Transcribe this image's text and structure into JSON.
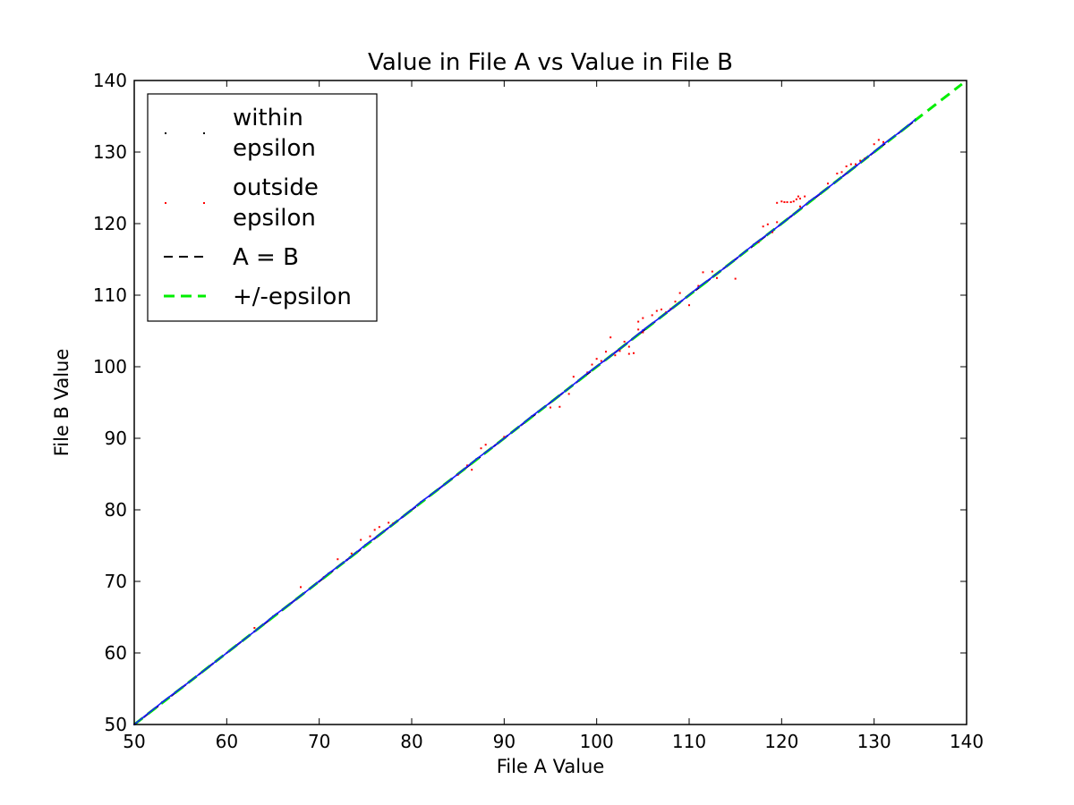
{
  "chart_data": {
    "type": "scatter",
    "title": "Value in File A vs Value in File B",
    "xlabel": "File A Value",
    "ylabel": "File B Value",
    "xlim": [
      50,
      140
    ],
    "ylim": [
      50,
      140
    ],
    "xticks": [
      "50",
      "60",
      "70",
      "80",
      "90",
      "100",
      "110",
      "120",
      "130",
      "140"
    ],
    "yticks": [
      "50",
      "60",
      "70",
      "80",
      "90",
      "100",
      "110",
      "120",
      "130",
      "140"
    ],
    "grid": false,
    "legend_position": "top-left",
    "series": [
      {
        "name": "within epsilon",
        "kind": "points",
        "color": "#1a1aff",
        "points": [
          [
            50,
            50
          ],
          [
            53,
            53.1
          ],
          [
            56,
            56
          ],
          [
            58,
            58
          ],
          [
            60.5,
            60.5
          ],
          [
            63,
            63
          ],
          [
            65,
            65.1
          ],
          [
            67,
            67
          ],
          [
            69,
            69
          ],
          [
            71,
            71.1
          ],
          [
            73,
            73
          ],
          [
            75,
            75.1
          ],
          [
            77,
            77
          ],
          [
            79,
            79
          ],
          [
            81,
            81.1
          ],
          [
            83,
            83
          ],
          [
            85,
            85
          ],
          [
            87,
            87.1
          ],
          [
            89,
            89
          ],
          [
            91,
            91
          ],
          [
            93,
            93.1
          ],
          [
            95,
            95
          ],
          [
            97,
            97
          ],
          [
            99,
            99.1
          ],
          [
            101,
            101
          ],
          [
            103,
            103
          ],
          [
            105,
            105.1
          ],
          [
            107,
            107
          ],
          [
            109,
            109
          ],
          [
            111,
            111.1
          ],
          [
            113,
            113
          ],
          [
            115,
            115
          ],
          [
            117,
            117.1
          ],
          [
            119,
            119
          ],
          [
            121,
            121
          ],
          [
            123,
            123.1
          ],
          [
            125,
            125
          ],
          [
            127,
            127
          ],
          [
            129,
            129
          ],
          [
            131,
            131.1
          ],
          [
            133,
            133
          ],
          [
            134.5,
            134.6
          ]
        ]
      },
      {
        "name": "outside epsilon",
        "kind": "points",
        "color": "#ff0000",
        "points": [
          [
            63,
            63.5
          ],
          [
            68,
            69.2
          ],
          [
            70.5,
            70.6
          ],
          [
            72,
            73.1
          ],
          [
            73.5,
            73.9
          ],
          [
            74.5,
            75.8
          ],
          [
            75.5,
            76.3
          ],
          [
            76,
            77.2
          ],
          [
            76.5,
            77.6
          ],
          [
            77.5,
            78.2
          ],
          [
            78,
            78.1
          ],
          [
            85,
            84.9
          ],
          [
            86,
            86.2
          ],
          [
            86.5,
            85.6
          ],
          [
            87.5,
            88.6
          ],
          [
            88,
            89.1
          ],
          [
            90,
            90.2
          ],
          [
            95,
            94.3
          ],
          [
            96,
            94.4
          ],
          [
            97,
            96.2
          ],
          [
            97.5,
            98.6
          ],
          [
            99,
            99.2
          ],
          [
            99.5,
            100.3
          ],
          [
            100,
            101.1
          ],
          [
            100.5,
            100.8
          ],
          [
            101,
            102.1
          ],
          [
            101.5,
            104.1
          ],
          [
            102,
            101.6
          ],
          [
            102.5,
            102.2
          ],
          [
            103,
            103.5
          ],
          [
            103.5,
            102.8
          ],
          [
            103.5,
            101.8
          ],
          [
            104,
            101.9
          ],
          [
            104.5,
            105.2
          ],
          [
            104.5,
            106.3
          ],
          [
            105,
            106.8
          ],
          [
            105,
            104.8
          ],
          [
            106,
            107.2
          ],
          [
            106.5,
            107.8
          ],
          [
            107,
            108
          ],
          [
            107.5,
            107.6
          ],
          [
            108,
            108.1
          ],
          [
            108.5,
            109.1
          ],
          [
            109,
            110.3
          ],
          [
            110,
            108.6
          ],
          [
            111,
            111.3
          ],
          [
            111.5,
            113.2
          ],
          [
            112.5,
            113.3
          ],
          [
            113,
            112.4
          ],
          [
            115,
            112.3
          ],
          [
            117.5,
            117.4
          ],
          [
            118,
            119.6
          ],
          [
            118.5,
            119.9
          ],
          [
            119,
            118.8
          ],
          [
            119.5,
            120.2
          ],
          [
            119.5,
            122.9
          ],
          [
            120,
            123.1
          ],
          [
            120.3,
            123
          ],
          [
            120.6,
            123
          ],
          [
            121,
            123
          ],
          [
            121.3,
            123.1
          ],
          [
            121.6,
            123.4
          ],
          [
            121.8,
            123.8
          ],
          [
            122,
            123.5
          ],
          [
            122,
            122.4
          ],
          [
            122.5,
            123.8
          ],
          [
            125,
            125.6
          ],
          [
            126,
            127
          ],
          [
            126.5,
            127.2
          ],
          [
            127,
            128
          ],
          [
            127.5,
            128.3
          ],
          [
            128,
            128.3
          ],
          [
            128.5,
            128.8
          ],
          [
            129,
            129.1
          ],
          [
            130,
            131.1
          ],
          [
            130.5,
            131.7
          ],
          [
            131,
            131.4
          ]
        ]
      },
      {
        "name": "A = B",
        "kind": "line",
        "color": "#000000",
        "points": [
          [
            50,
            50
          ],
          [
            134.5,
            134.5
          ]
        ]
      },
      {
        "name": "+/-epsilon",
        "kind": "line",
        "color": "#00ee00",
        "points": [
          [
            50,
            50
          ],
          [
            139.5,
            139.5
          ]
        ]
      }
    ]
  }
}
